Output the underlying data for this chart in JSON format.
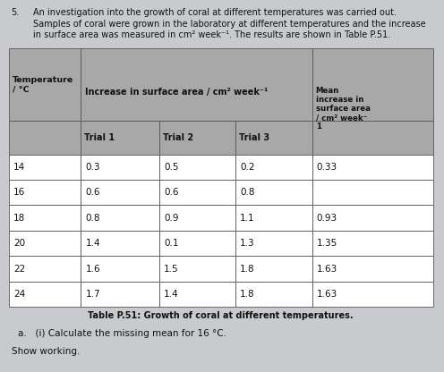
{
  "question_number": "5.",
  "intro_line1": "An investigation into the growth of coral at different temperatures was carried out.",
  "intro_line2": "Samples of coral were grown in the laboratory at different temperatures and the increase",
  "intro_line3": "in surface area was measured in cm² week⁻¹. The results are shown in Table P.51.",
  "table_caption": "Table P.51: Growth of coral at different temperatures.",
  "header_temp": "Temperature\n/ °C",
  "header_increase": "Increase in surface area / cm² week⁻¹",
  "header_mean": "Mean\nincrease in\nsurface area\n/ cm² week⁻\n1",
  "sub_headers": [
    "Trial 1",
    "Trial 2",
    "Trial 3"
  ],
  "rows": [
    [
      "14",
      "0.3",
      "0.5",
      "0.2",
      "0.33"
    ],
    [
      "16",
      "0.6",
      "0.6",
      "0.8",
      ""
    ],
    [
      "18",
      "0.8",
      "0.9",
      "1.1",
      "0.93"
    ],
    [
      "20",
      "1.4",
      "0.1",
      "1.3",
      "1.35"
    ],
    [
      "22",
      "1.6",
      "1.5",
      "1.8",
      "1.63"
    ],
    [
      "24",
      "1.7",
      "1.4",
      "1.8",
      "1.63"
    ]
  ],
  "question_a": "a.   (i) Calculate the missing mean for 16 °C.",
  "show_working": "Show working.",
  "page_bg": "#c9cace",
  "header_bg": "#a8a8a8",
  "white": "#ffffff",
  "border_color": "#555555",
  "text_color": "#111111"
}
